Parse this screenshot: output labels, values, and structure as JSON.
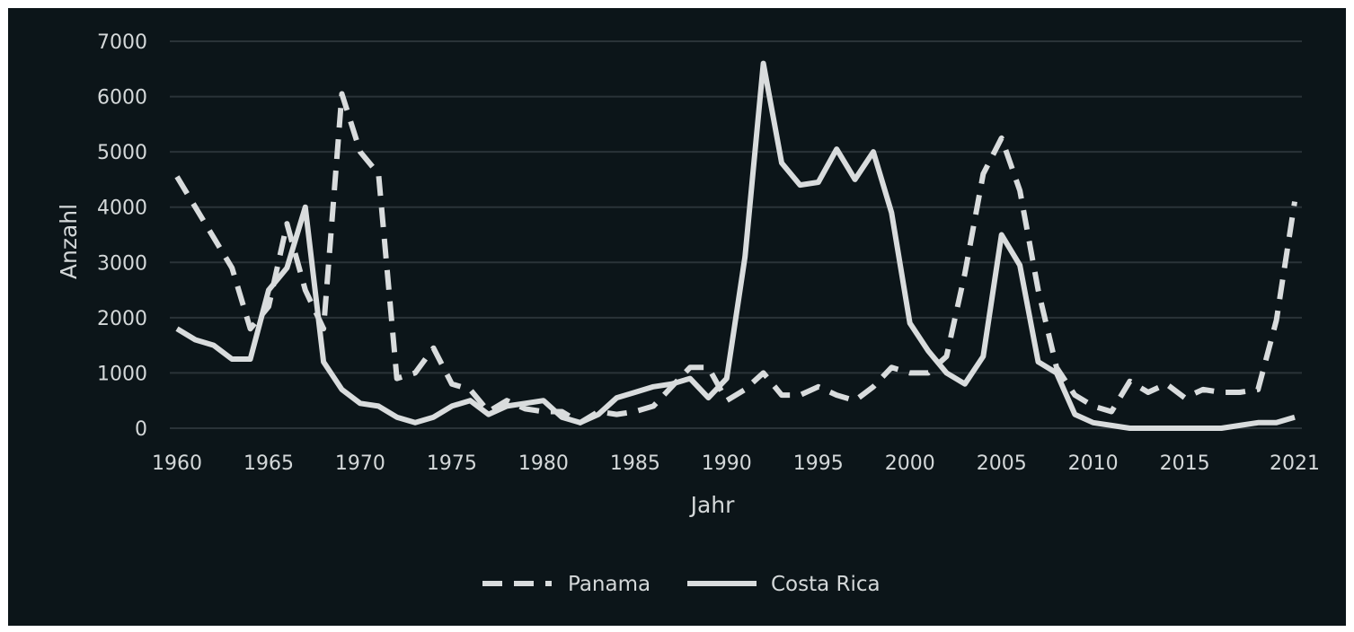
{
  "chart_data": {
    "type": "line",
    "title": "",
    "xlabel": "Jahr",
    "ylabel": "Anzahl",
    "xlim": [
      1960,
      2021
    ],
    "ylim": [
      0,
      7000
    ],
    "x_ticks": [
      1960,
      1965,
      1970,
      1975,
      1980,
      1985,
      1990,
      1995,
      2000,
      2005,
      2010,
      2015,
      2021
    ],
    "y_ticks": [
      0,
      1000,
      2000,
      3000,
      4000,
      5000,
      6000,
      7000
    ],
    "grid": "horizontal",
    "legend_position": "bottom-center",
    "colors": {
      "background": "#0c1519",
      "line": "#d9dcdd",
      "grid": "#2a3338",
      "text": "#d4d8d9"
    },
    "x": [
      1960,
      1961,
      1962,
      1963,
      1964,
      1965,
      1966,
      1967,
      1968,
      1969,
      1970,
      1971,
      1972,
      1973,
      1974,
      1975,
      1976,
      1977,
      1978,
      1979,
      1980,
      1981,
      1982,
      1983,
      1984,
      1985,
      1986,
      1987,
      1988,
      1989,
      1990,
      1991,
      1992,
      1993,
      1994,
      1995,
      1996,
      1997,
      1998,
      1999,
      2000,
      2001,
      2002,
      2003,
      2004,
      2005,
      2006,
      2007,
      2008,
      2009,
      2010,
      2011,
      2012,
      2013,
      2014,
      2015,
      2016,
      2017,
      2018,
      2019,
      2020,
      2021
    ],
    "series": [
      {
        "name": "Panama",
        "style": "dashed",
        "values": [
          4550,
          4000,
          3450,
          2900,
          1800,
          2200,
          3700,
          2500,
          1800,
          6050,
          5000,
          4600,
          900,
          1000,
          1450,
          800,
          700,
          300,
          500,
          350,
          300,
          300,
          100,
          300,
          250,
          300,
          400,
          750,
          1100,
          1100,
          500,
          700,
          1000,
          600,
          600,
          750,
          600,
          500,
          750,
          1100,
          1000,
          1000,
          1300,
          2800,
          4600,
          5250,
          4300,
          2500,
          1100,
          600,
          400,
          300,
          850,
          650,
          800,
          550,
          700,
          650,
          650,
          700,
          1950,
          4100
        ]
      },
      {
        "name": "Costa Rica",
        "style": "solid",
        "values": [
          1800,
          1600,
          1500,
          1250,
          1250,
          2500,
          2900,
          4000,
          1200,
          700,
          450,
          400,
          200,
          100,
          200,
          400,
          500,
          250,
          400,
          450,
          500,
          200,
          100,
          250,
          550,
          650,
          750,
          800,
          900,
          550,
          900,
          3100,
          6600,
          4800,
          4400,
          4450,
          5050,
          4500,
          5000,
          3900,
          1900,
          1400,
          1000,
          800,
          1300,
          3500,
          2950,
          1200,
          1000,
          250,
          100,
          50,
          0,
          0,
          0,
          0,
          0,
          0,
          50,
          100,
          100,
          200
        ]
      }
    ]
  }
}
